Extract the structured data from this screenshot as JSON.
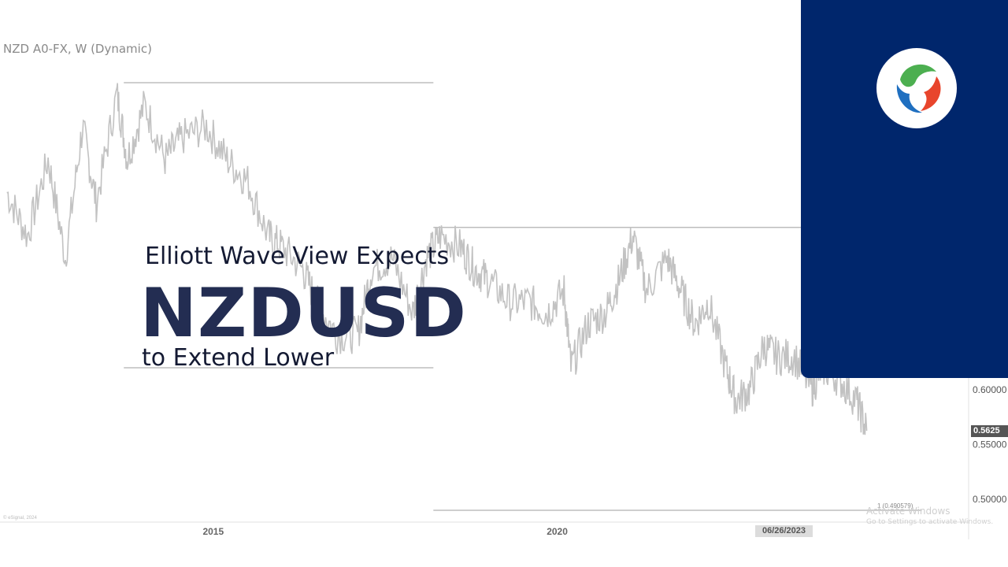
{
  "headline": {
    "line1": "Elliott Wave View Expects",
    "line2": "NZDUSD",
    "line3": "to Extend Lower"
  },
  "watermark": {
    "line1": "Activate Windows",
    "line2": "Go to Settings to activate Windows."
  },
  "source_note": "© eSignal, 2024",
  "brand_colors": {
    "panel": "#00266c",
    "headline": "#232d52"
  },
  "logo_icon": "elliottwave-forecast-swirl-logo",
  "chart_data": {
    "type": "line",
    "title": "NZD A0-FX, W (Dynamic)",
    "xlabel": "",
    "ylabel": "",
    "x_ticks": [
      "2015",
      "2020"
    ],
    "highlighted_date": "06/26/2023",
    "y_ticks": [
      "0.60000",
      "0.55000",
      "0.50000"
    ],
    "last_price_label": "0.5625",
    "fib_label": "1 (0.490579)",
    "xlim": [
      2011.9,
      2024.55
    ],
    "ylim": [
      0.49,
      0.885
    ],
    "levels": [
      {
        "value": 0.88,
        "x_range": [
          2013.7,
          2018.2
        ]
      },
      {
        "value": 0.748,
        "x_range": [
          2018.2,
          2026.0
        ]
      },
      {
        "value": 0.62,
        "x_range": [
          2013.7,
          2018.2
        ]
      },
      {
        "value": 0.49,
        "x_range": [
          2018.2,
          2025.3
        ]
      }
    ],
    "series": [
      {
        "x": [
          2012.0,
          2012.3,
          2012.6,
          2012.85,
          2013.1,
          2013.3,
          2013.6,
          2013.75,
          2014.0,
          2014.3,
          2014.55,
          2014.9,
          2015.2,
          2015.5,
          2015.8,
          2016.0,
          2016.3,
          2016.5,
          2016.8,
          2017.1,
          2017.3,
          2017.6,
          2017.9,
          2018.1,
          2018.3,
          2018.6,
          2018.8,
          2019.0,
          2019.3,
          2019.6,
          2019.85,
          2020.1,
          2020.2,
          2020.45,
          2020.7,
          2020.9,
          2021.1,
          2021.3,
          2021.6,
          2021.8,
          2022.0,
          2022.2,
          2022.45,
          2022.6,
          2022.8,
          2023.0,
          2023.2,
          2023.45,
          2023.7,
          2023.85,
          2024.1,
          2024.35,
          2024.5
        ],
        "y": [
          0.78,
          0.74,
          0.81,
          0.72,
          0.84,
          0.77,
          0.87,
          0.81,
          0.86,
          0.81,
          0.83,
          0.84,
          0.81,
          0.79,
          0.74,
          0.73,
          0.71,
          0.68,
          0.65,
          0.65,
          0.71,
          0.72,
          0.67,
          0.72,
          0.74,
          0.73,
          0.71,
          0.7,
          0.68,
          0.68,
          0.67,
          0.69,
          0.62,
          0.66,
          0.67,
          0.7,
          0.74,
          0.69,
          0.72,
          0.69,
          0.66,
          0.68,
          0.62,
          0.59,
          0.6,
          0.64,
          0.63,
          0.63,
          0.6,
          0.62,
          0.61,
          0.59,
          0.5625
        ]
      }
    ]
  }
}
